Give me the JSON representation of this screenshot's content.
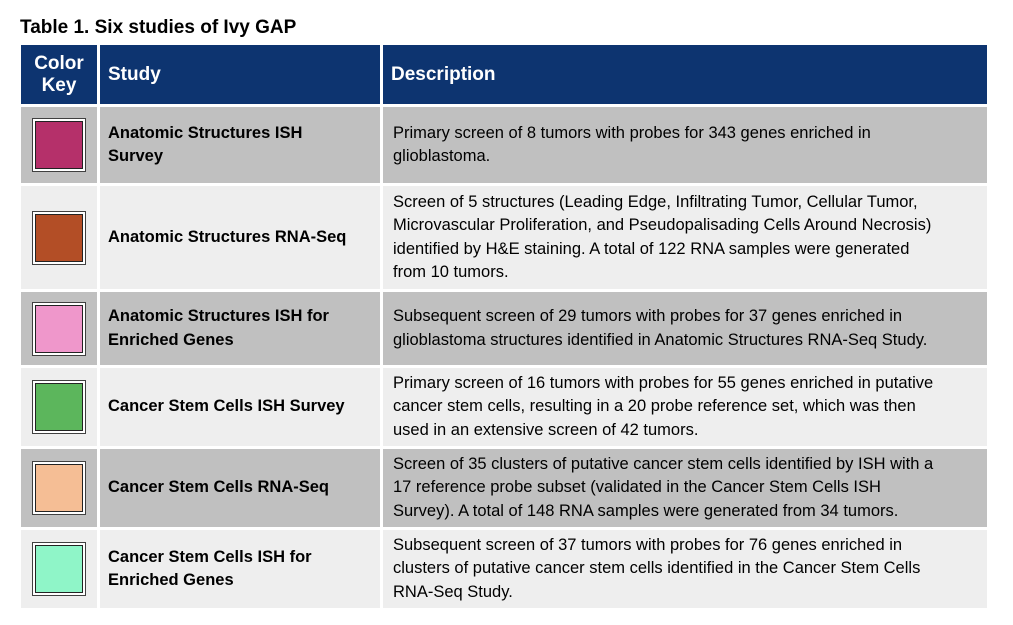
{
  "caption": "Table 1. Six studies of Ivy GAP",
  "headers": {
    "color_key_line1": "Color",
    "color_key_line2": "Key",
    "study": "Study",
    "description": "Description"
  },
  "rows": [
    {
      "color": "#b5306a",
      "study_lines": [
        "Anatomic Structures ISH",
        "Survey"
      ],
      "desc_lines": [
        "Primary screen of 8 tumors with probes for 343 genes enriched in",
        "glioblastoma."
      ]
    },
    {
      "color": "#b34e26",
      "study_lines": [
        "Anatomic Structures RNA-Seq"
      ],
      "desc_lines": [
        "Screen of 5 structures (Leading Edge, Infiltrating Tumor, Cellular Tumor,",
        "Microvascular Proliferation, and Pseudopalisading Cells Around Necrosis)",
        "identified by H&E staining. A total of 122 RNA samples were generated",
        "from 10 tumors."
      ]
    },
    {
      "color": "#ef97cb",
      "study_lines": [
        "Anatomic Structures ISH for",
        "Enriched Genes"
      ],
      "desc_lines": [
        "Subsequent screen of 29 tumors with probes for 37 genes enriched in",
        "glioblastoma structures identified in Anatomic Structures RNA-Seq Study."
      ]
    },
    {
      "color": "#5cb65c",
      "study_lines": [
        "Cancer Stem Cells ISH Survey"
      ],
      "desc_lines": [
        "Primary screen of 16 tumors with probes for 55 genes enriched in putative",
        "cancer stem cells, resulting in a 20 probe reference set, which was then",
        "used in an extensive screen of 42 tumors."
      ]
    },
    {
      "color": "#f5be95",
      "study_lines": [
        "Cancer Stem Cells RNA-Seq"
      ],
      "desc_lines": [
        "Screen of 35 clusters of putative cancer stem cells identified by ISH with a",
        "17 reference probe subset (validated in the Cancer Stem Cells ISH",
        "Survey). A total of 148 RNA samples were generated from 34 tumors."
      ]
    },
    {
      "color": "#8ff5c8",
      "study_lines": [
        "Cancer Stem Cells ISH for",
        "Enriched Genes"
      ],
      "desc_lines": [
        "Subsequent screen of 37 tumors with probes for 76 genes enriched in",
        "clusters of putative cancer stem cells identified in the Cancer Stem Cells",
        "RNA-Seq Study."
      ]
    }
  ]
}
